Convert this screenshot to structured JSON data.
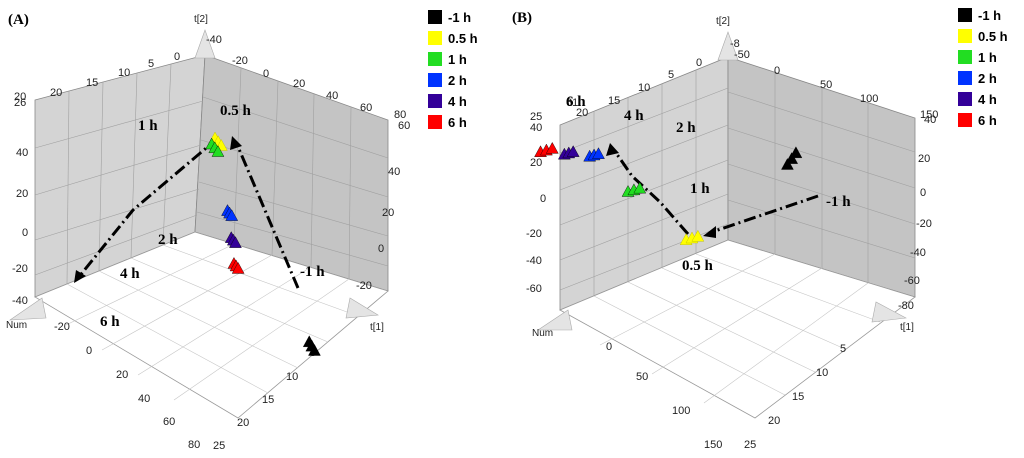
{
  "panels": [
    {
      "label": "(A)",
      "axis_names": {
        "y": "t[2]",
        "x": "t[1]",
        "num": "Num"
      },
      "legend": [
        {
          "text": "-1 h",
          "color": "#000000"
        },
        {
          "text": "0.5 h",
          "color": "#ffff00"
        },
        {
          "text": "1 h",
          "color": "#22dd22"
        },
        {
          "text": "2 h",
          "color": "#0033ff"
        },
        {
          "text": "4 h",
          "color": "#330099"
        },
        {
          "text": "6 h",
          "color": "#ff0000"
        }
      ],
      "ticks": {
        "num_top": [
          "20",
          "15",
          "10",
          "5",
          "0"
        ],
        "x_top": [
          "-20",
          "0",
          "20",
          "40",
          "60",
          "80"
        ],
        "y_left": [
          "40",
          "20",
          "0",
          "-20",
          "-40"
        ],
        "y_left_top": [
          "20",
          "26"
        ],
        "y_right": [
          "60",
          "40",
          "20",
          "0",
          "-20"
        ],
        "num_front": [
          "-20",
          "0",
          "20",
          "40",
          "60",
          "80"
        ],
        "x_front": [
          "5",
          "10",
          "15",
          "20",
          "25"
        ],
        "top_label": "-40"
      },
      "cluster_labels": [
        "1 h",
        "0.5 h",
        "2 h",
        "4 h",
        "6 h",
        "-1 h"
      ]
    },
    {
      "label": "(B)",
      "axis_names": {
        "y": "t[2]",
        "x": "t[1]",
        "num": "Num"
      },
      "legend": [
        {
          "text": "-1 h",
          "color": "#000000"
        },
        {
          "text": "0.5 h",
          "color": "#ffff00"
        },
        {
          "text": "1 h",
          "color": "#22dd22"
        },
        {
          "text": "2 h",
          "color": "#0033ff"
        },
        {
          "text": "4 h",
          "color": "#330099"
        },
        {
          "text": "6 h",
          "color": "#ff0000"
        }
      ],
      "ticks": {
        "num_top": [
          "20",
          "15",
          "10",
          "5",
          "0"
        ],
        "x_top": [
          "-50",
          "0",
          "50",
          "100",
          "150"
        ],
        "y_left": [
          "40",
          "20",
          "0",
          "-20",
          "-40",
          "-60"
        ],
        "y_left_top": [
          "25",
          "61"
        ],
        "y_right": [
          "40",
          "20",
          "0",
          "-20",
          "-40",
          "-60",
          "-80"
        ],
        "num_front": [
          "0",
          "50",
          "100",
          "150"
        ],
        "x_front": [
          "5",
          "10",
          "15",
          "20",
          "25"
        ],
        "top_label": "-8"
      },
      "cluster_labels": [
        "6 h",
        "4 h",
        "2 h",
        "1 h",
        "-1 h",
        "0.5 h"
      ]
    }
  ],
  "chart_data": [
    {
      "type": "scatter",
      "title": "(A)",
      "xlabel": "t[1]",
      "ylabel": "t[2]",
      "zlabel": "Num",
      "xlim": [
        -20,
        80
      ],
      "ylim": [
        -40,
        60
      ],
      "series": [
        {
          "name": "-1 h",
          "color": "#000000",
          "x": [
            60,
            62,
            64
          ],
          "y": [
            -25,
            -26,
            -27
          ]
        },
        {
          "name": "0.5 h",
          "color": "#ffff00",
          "x": [
            5,
            8,
            11
          ],
          "y": [
            48,
            48,
            48
          ]
        },
        {
          "name": "1 h",
          "color": "#22dd22",
          "x": [
            -2,
            1,
            4
          ],
          "y": [
            40,
            40,
            40
          ]
        },
        {
          "name": "2 h",
          "color": "#0033ff",
          "x": [
            -5,
            -3,
            -1
          ],
          "y": [
            2,
            2,
            2
          ]
        },
        {
          "name": "4 h",
          "color": "#330099",
          "x": [
            -10,
            -8,
            -6
          ],
          "y": [
            -16,
            -16,
            -16
          ]
        },
        {
          "name": "6 h",
          "color": "#ff0000",
          "x": [
            -16,
            -14,
            -12
          ],
          "y": [
            -34,
            -34,
            -34
          ]
        }
      ]
    },
    {
      "type": "scatter",
      "title": "(B)",
      "xlabel": "t[1]",
      "ylabel": "t[2]",
      "zlabel": "Num",
      "xlim": [
        -50,
        150
      ],
      "ylim": [
        -80,
        40
      ],
      "series": [
        {
          "name": "-1 h",
          "color": "#000000",
          "x": [
            100,
            105,
            110
          ],
          "y": [
            0,
            2,
            4
          ]
        },
        {
          "name": "0.5 h",
          "color": "#ffff00",
          "x": [
            10,
            14,
            18
          ],
          "y": [
            -20,
            -20,
            -20
          ]
        },
        {
          "name": "1 h",
          "color": "#22dd22",
          "x": [
            0,
            4,
            8
          ],
          "y": [
            8,
            8,
            8
          ]
        },
        {
          "name": "2 h",
          "color": "#0033ff",
          "x": [
            -5,
            -2,
            1
          ],
          "y": [
            28,
            28,
            28
          ]
        },
        {
          "name": "4 h",
          "color": "#330099",
          "x": [
            -18,
            -15,
            -12
          ],
          "y": [
            32,
            32,
            32
          ]
        },
        {
          "name": "6 h",
          "color": "#ff0000",
          "x": [
            -30,
            -26,
            -22
          ],
          "y": [
            36,
            36,
            36
          ]
        }
      ]
    }
  ]
}
